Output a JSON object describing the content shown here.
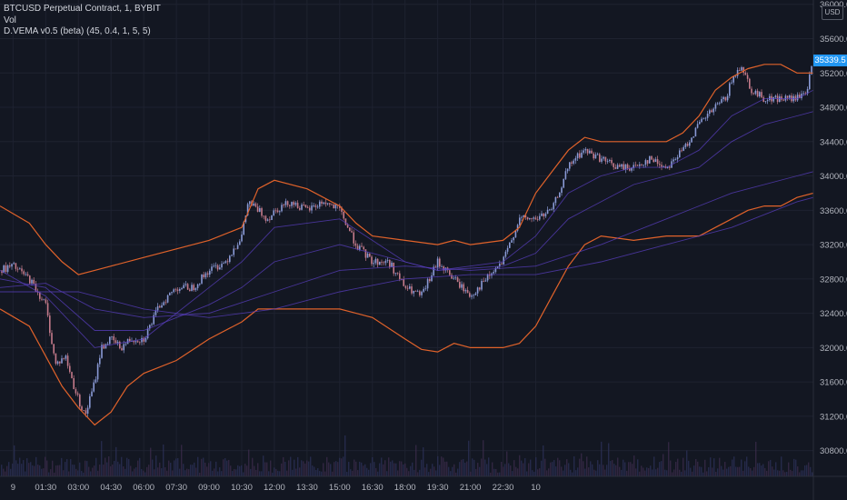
{
  "legend": {
    "symbol": "BTCUSD Perpetual Contract, 1, BYBIT",
    "vol": "Vol",
    "indicator": "D.VEMA v0.5 (beta) (45, 0.4, 1, 5, 5)"
  },
  "currency_badge": "USD",
  "last_price": "35339.5",
  "colors": {
    "background": "#131722",
    "grid": "#1e2230",
    "bands": "#e0622a",
    "ema": "#5a3fc0",
    "candle_up": "#8a9ad6",
    "candle_down": "#c47a8a",
    "price_tag": "#2196f3"
  },
  "chart_data": {
    "type": "candlestick",
    "title": "",
    "y_axis": {
      "ticks": [
        "36000.0",
        "35600.0",
        "35200.0",
        "34800.0",
        "34400.0",
        "34000.0",
        "33600.0",
        "33200.0",
        "32800.0",
        "32400.0",
        "32000.0",
        "31600.0",
        "31200.0",
        "30800.0"
      ],
      "ylim": [
        30500,
        36050
      ]
    },
    "x_axis": {
      "ticks": [
        "9",
        "01:30",
        "03:00",
        "04:30",
        "06:00",
        "07:30",
        "09:00",
        "10:30",
        "12:00",
        "13:30",
        "15:00",
        "16:30",
        "18:00",
        "19:30",
        "21:00",
        "22:30",
        "10"
      ],
      "xlim": [
        -0.4,
        24.5
      ]
    },
    "series": [
      {
        "name": "price",
        "x": [
          -0.4,
          0,
          0.5,
          1,
          1.3,
          1.6,
          1.9,
          2.2,
          2.5,
          2.7,
          3,
          3.3,
          3.6,
          4,
          4.5,
          5,
          5.5,
          6,
          6.5,
          7,
          7.2,
          7.5,
          7.8,
          8,
          8.5,
          9,
          9.5,
          10,
          10.5,
          11,
          11.5,
          12,
          12.5,
          13,
          13.5,
          14,
          14.5,
          15,
          15.5,
          16,
          16.5,
          17,
          17.2,
          17.5,
          18,
          18.5,
          19,
          19.5,
          20,
          20.5,
          21,
          21.5,
          21.8,
          22,
          22.3,
          22.6,
          23,
          23.5,
          24,
          24.3,
          24.5
        ],
        "y": [
          32900,
          32950,
          32800,
          32500,
          31800,
          31900,
          31500,
          31200,
          31600,
          32000,
          32100,
          32000,
          32100,
          32100,
          32500,
          32700,
          32700,
          32900,
          33000,
          33300,
          33700,
          33600,
          33500,
          33600,
          33700,
          33600,
          33700,
          33600,
          33200,
          33000,
          33000,
          32700,
          32600,
          33000,
          32800,
          32600,
          32800,
          33000,
          33500,
          33500,
          33600,
          34100,
          34200,
          34300,
          34200,
          34100,
          34100,
          34200,
          34100,
          34300,
          34600,
          34800,
          34900,
          35100,
          35300,
          35000,
          34900,
          34900,
          34900,
          35000,
          35340
        ]
      },
      {
        "name": "upper band",
        "x": [
          -0.4,
          0.5,
          1,
          1.5,
          2,
          2.5,
          3,
          4,
          5,
          6,
          7,
          7.5,
          8,
          9,
          10,
          10.5,
          11,
          12,
          13,
          13.5,
          14,
          15,
          15.5,
          16,
          16.5,
          17,
          17.5,
          18,
          19,
          20,
          20.5,
          21,
          21.5,
          22,
          22.5,
          23,
          23.5,
          24,
          24.5
        ],
        "y": [
          33650,
          33450,
          33200,
          33000,
          32850,
          32900,
          32950,
          33050,
          33150,
          33250,
          33400,
          33850,
          33950,
          33850,
          33650,
          33450,
          33300,
          33250,
          33200,
          33250,
          33200,
          33250,
          33400,
          33800,
          34050,
          34300,
          34450,
          34400,
          34400,
          34400,
          34500,
          34700,
          35000,
          35150,
          35250,
          35300,
          35300,
          35200,
          35200
        ]
      },
      {
        "name": "lower band",
        "x": [
          -0.4,
          0.5,
          1,
          1.5,
          2,
          2.5,
          3,
          3.5,
          4,
          5,
          6,
          7,
          7.5,
          8,
          9,
          10,
          10.5,
          11,
          12,
          12.5,
          13,
          13.5,
          14,
          15,
          15.5,
          16,
          16.5,
          17,
          17.5,
          18,
          19,
          20,
          20.5,
          21,
          21.5,
          22,
          22.5,
          23,
          23.5,
          24,
          24.5
        ],
        "y": [
          32450,
          32250,
          31900,
          31550,
          31300,
          31100,
          31250,
          31550,
          31700,
          31850,
          32100,
          32300,
          32450,
          32450,
          32450,
          32450,
          32400,
          32350,
          32100,
          31980,
          31950,
          32050,
          32000,
          32000,
          32050,
          32250,
          32600,
          32950,
          33200,
          33300,
          33250,
          33300,
          33300,
          33300,
          33400,
          33500,
          33600,
          33650,
          33650,
          33750,
          33800
        ]
      },
      {
        "name": "ema 1",
        "x": [
          -0.4,
          1,
          2.5,
          4,
          6,
          7,
          8,
          10,
          12,
          13,
          15,
          16,
          17,
          18,
          19,
          20,
          21,
          22,
          23,
          24,
          24.5
        ],
        "y": [
          32900,
          32600,
          32000,
          32100,
          32700,
          33000,
          33400,
          33500,
          33000,
          32900,
          33000,
          33300,
          33800,
          34000,
          34100,
          34100,
          34300,
          34700,
          34900,
          34900,
          35000
        ]
      },
      {
        "name": "ema 2",
        "x": [
          -0.4,
          1,
          2.5,
          4,
          6,
          7,
          8,
          10,
          12,
          13,
          15,
          16,
          17,
          18,
          19,
          20,
          21,
          22,
          23,
          24,
          24.5
        ],
        "y": [
          32800,
          32700,
          32200,
          32200,
          32500,
          32700,
          33000,
          33200,
          33000,
          32900,
          32950,
          33100,
          33500,
          33700,
          33900,
          34000,
          34100,
          34400,
          34600,
          34700,
          34750
        ]
      },
      {
        "name": "ema 3",
        "x": [
          -0.4,
          1,
          2.5,
          4,
          6,
          8,
          10,
          12,
          14,
          16,
          18,
          20,
          22,
          24,
          24.5
        ],
        "y": [
          32700,
          32750,
          32450,
          32350,
          32400,
          32650,
          32900,
          32950,
          32900,
          32950,
          33200,
          33500,
          33800,
          34000,
          34050
        ]
      },
      {
        "name": "ema 4",
        "x": [
          -0.4,
          2,
          4,
          6,
          8,
          10,
          12,
          14,
          16,
          18,
          20,
          22,
          24,
          24.5
        ],
        "y": [
          32650,
          32650,
          32450,
          32350,
          32450,
          32650,
          32800,
          32850,
          32850,
          33000,
          33200,
          33400,
          33700,
          33750
        ]
      }
    ],
    "volume": {
      "note": "volume histogram along bottom",
      "relative_level": 0.15
    }
  }
}
